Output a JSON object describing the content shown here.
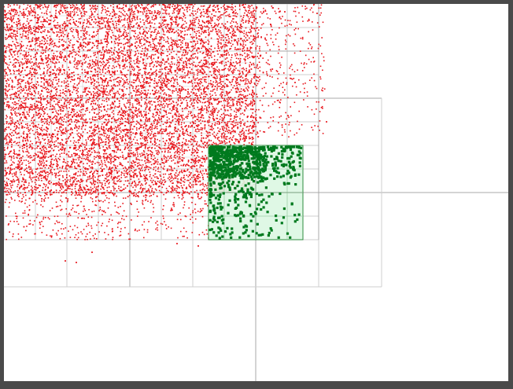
{
  "colors": {
    "frame": "#4a4a4a",
    "canvas": "#ffffff",
    "point_dense": "#e8151b",
    "point_query": "#007a1e",
    "query_fill": "#dcf7e2",
    "query_stroke": "#2e8b3e",
    "grid_major": "#a8a8a8",
    "grid_minor": "#cfcfcf"
  },
  "visualization": {
    "kind": "quadtree-range-query",
    "dense_point_cloud": "red-points",
    "query_result_points": "green-points",
    "query_region": "green-rectangle"
  }
}
